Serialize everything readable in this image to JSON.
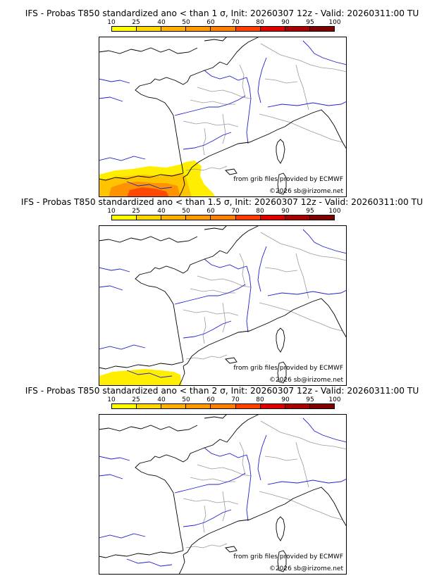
{
  "colorbar": {
    "ticks": [
      "10",
      "25",
      "40",
      "50",
      "60",
      "70",
      "80",
      "90",
      "95",
      "100"
    ],
    "colors": [
      "#ffff00",
      "#ffd700",
      "#ffb000",
      "#ff9a00",
      "#ff7f00",
      "#ff4000",
      "#dd0000",
      "#aa0000",
      "#800000"
    ]
  },
  "map_colors": {
    "coast": "#000000",
    "rivers": "#2020cc",
    "borders": "#999999",
    "prob_low": "#ffee00",
    "prob_mid": "#ffc400",
    "prob_high": "#ff9200",
    "prob_max": "#ff4800"
  },
  "panels": [
    {
      "title": "IFS - Probas T850  standardized ano < than 1 σ, Init: 20260307 12z - Valid: 20260311:00 TU",
      "threshold": "1 σ",
      "credit_source": "from grib files provided by ECMWF",
      "credit_copyright": "©2026 sb@irizome.net"
    },
    {
      "title": "IFS - Probas T850  standardized ano < than 1.5 σ, Init: 20260307 12z - Valid: 20260311:00 TU",
      "threshold": "1.5 σ",
      "credit_source": "from grib files provided by ECMWF",
      "credit_copyright": "©2026 sb@irizome.net"
    },
    {
      "title": "IFS - Probas T850  standardized ano < than 2 σ, Init: 20260307 12z - Valid: 20260311:00 TU",
      "threshold": "2 σ",
      "credit_source": "from grib files provided by ECMWF",
      "credit_copyright": "©2026 sb@irizome.net"
    }
  ]
}
